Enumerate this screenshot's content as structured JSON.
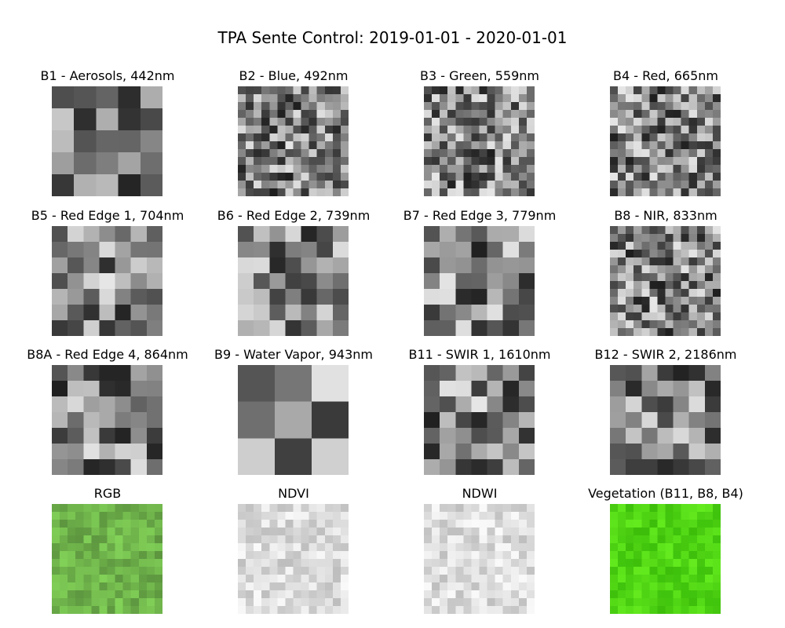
{
  "figure_title": "TPA Sente Control: 2019-01-01 - 2020-01-01",
  "panels": [
    {
      "title": "B1 - Aerosols, 442nm",
      "kind": "gray",
      "grid": 5,
      "seed": 11
    },
    {
      "title": "B2 - Blue, 492nm",
      "kind": "gray",
      "grid": 14,
      "seed": 21
    },
    {
      "title": "B3 - Green, 559nm",
      "kind": "gray",
      "grid": 14,
      "seed": 31
    },
    {
      "title": "B4 - Red, 665nm",
      "kind": "gray",
      "grid": 14,
      "seed": 41
    },
    {
      "title": "B5 - Red Edge 1, 704nm",
      "kind": "gray",
      "grid": 7,
      "seed": 51
    },
    {
      "title": "B6 - Red Edge 2, 739nm",
      "kind": "gray",
      "grid": 7,
      "seed": 61
    },
    {
      "title": "B7 - Red Edge 3, 779nm",
      "kind": "gray",
      "grid": 7,
      "seed": 71
    },
    {
      "title": "B8 - NIR, 833nm",
      "kind": "gray",
      "grid": 14,
      "seed": 81
    },
    {
      "title": "B8A - Red Edge 4, 864nm",
      "kind": "gray",
      "grid": 7,
      "seed": 91
    },
    {
      "title": "B9 - Water Vapor, 943nm",
      "kind": "gray",
      "grid": 3,
      "seed": 101
    },
    {
      "title": "B11 - SWIR 1, 1610nm",
      "kind": "gray",
      "grid": 7,
      "seed": 111
    },
    {
      "title": "B12 - SWIR 2, 2186nm",
      "kind": "gray",
      "grid": 7,
      "seed": 121
    },
    {
      "title": "RGB",
      "kind": "rgb",
      "grid": 14,
      "seed": 131
    },
    {
      "title": "NDVI",
      "kind": "light",
      "grid": 14,
      "seed": 141
    },
    {
      "title": "NDWI",
      "kind": "light",
      "grid": 14,
      "seed": 151
    },
    {
      "title": "Vegetation (B11, B8, B4)",
      "kind": "veg",
      "grid": 14,
      "seed": 161
    }
  ]
}
